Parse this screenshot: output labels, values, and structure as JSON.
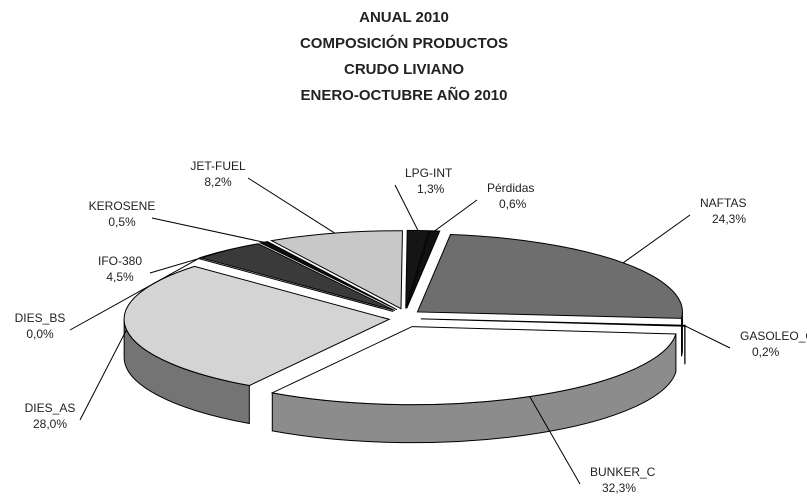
{
  "chart_data": {
    "type": "pie3d",
    "title": [
      "ANUAL 2010",
      "COMPOSICIÓN PRODUCTOS",
      "CRUDO LIVIANO",
      "ENERO-OCTUBRE AÑO  2010"
    ],
    "categories": [
      "Pérdidas",
      "NAFTAS",
      "GASOLEO_CRD",
      "BUNKER_C",
      "DIES_AS",
      "DIES_BS",
      "IFO-380",
      "KEROSENE",
      "JET-FUEL",
      "LPG-INT"
    ],
    "values": [
      0.6,
      24.3,
      0.2,
      32.3,
      28.0,
      0.0,
      4.5,
      0.5,
      8.2,
      1.3
    ],
    "value_labels": [
      "0,6%",
      "24,3%",
      "0,2%",
      "32,3%",
      "28,0%",
      "0,0%",
      "4,5%",
      "0,5%",
      "8,2%",
      "1,3%"
    ],
    "colors": [
      "#111111",
      "#6e6e6e",
      "#1a1a1a",
      "#ffffff",
      "#d4d4d4",
      "#e6e6e6",
      "#3a3a3a",
      "#0d0d0d",
      "#c8c8c8",
      "#151515"
    ]
  }
}
